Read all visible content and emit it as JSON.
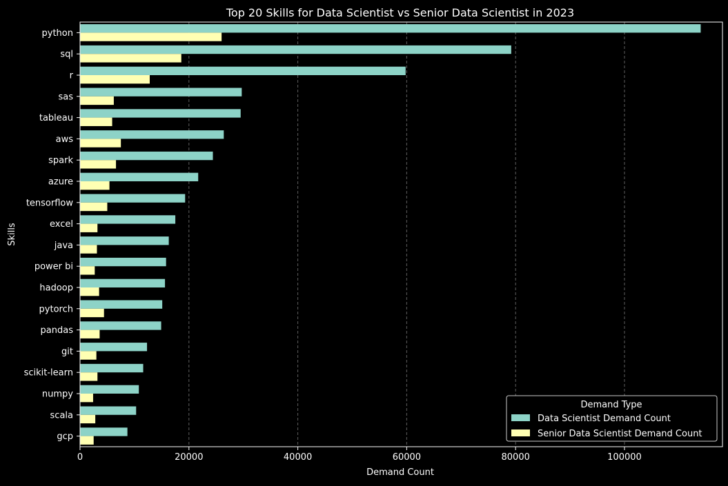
{
  "chart_data": {
    "type": "bar",
    "orientation": "horizontal",
    "title": "Top 20 Skills for Data Scientist vs Senior Data Scientist in 2023",
    "xlabel": "Demand Count",
    "ylabel": "Skills",
    "xlim": [
      0,
      118000
    ],
    "xticks": [
      0,
      20000,
      40000,
      60000,
      80000,
      100000
    ],
    "grid": "x-dashed",
    "legend_placement": "lower-right",
    "legend_title": "Demand Type",
    "categories": [
      "python",
      "sql",
      "r",
      "sas",
      "tableau",
      "aws",
      "spark",
      "azure",
      "tensorflow",
      "excel",
      "java",
      "power bi",
      "hadoop",
      "pytorch",
      "pandas",
      "git",
      "scikit-learn",
      "numpy",
      "scala",
      "gcp"
    ],
    "series": [
      {
        "name": "Data Scientist Demand Count",
        "color": "#8dd3c7",
        "values": [
          114000,
          79200,
          59800,
          29700,
          29500,
          26400,
          24400,
          21700,
          19300,
          17500,
          16300,
          15800,
          15600,
          15100,
          14900,
          12300,
          11600,
          10800,
          10300,
          8700
        ]
      },
      {
        "name": "Senior Data Scientist Demand Count",
        "color": "#ffffb3",
        "values": [
          26000,
          18600,
          12800,
          6200,
          5900,
          7500,
          6600,
          5400,
          5000,
          3200,
          3100,
          2700,
          3500,
          4400,
          3600,
          3000,
          3200,
          2400,
          2800,
          2500
        ]
      }
    ]
  }
}
